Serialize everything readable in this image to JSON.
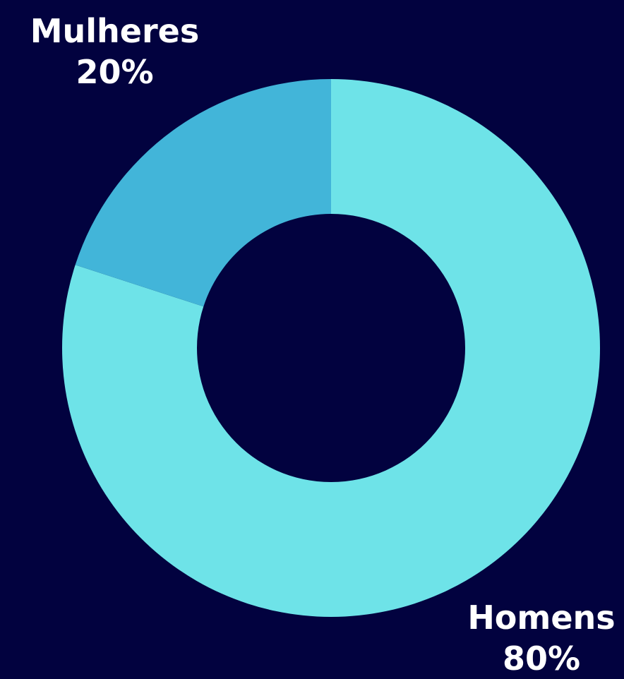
{
  "chart_data": {
    "type": "pie",
    "variant": "donut",
    "slices": [
      {
        "label": "Mulheres",
        "value": 20,
        "display": "20%",
        "color": "#42b5d9"
      },
      {
        "label": "Homens",
        "value": 80,
        "display": "80%",
        "color": "#6ee3e8"
      }
    ],
    "background": "#02023f",
    "label_color": "#ffffff"
  }
}
